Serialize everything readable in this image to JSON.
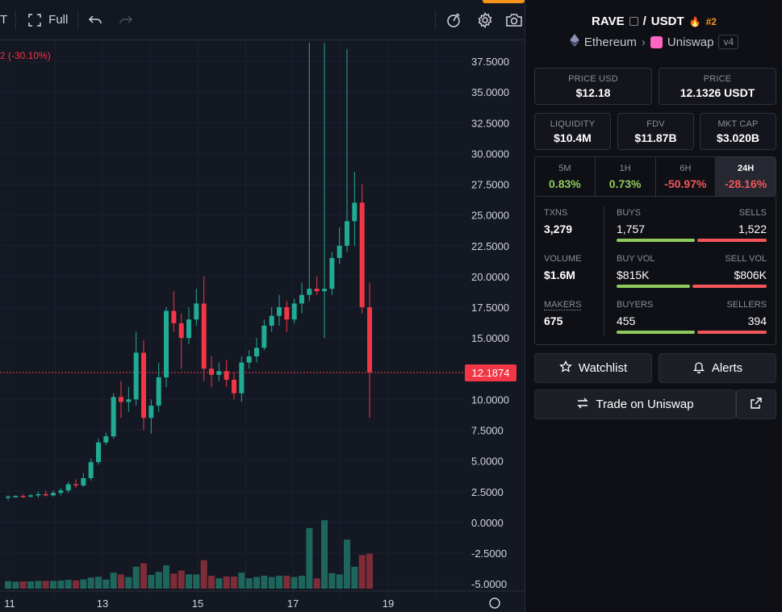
{
  "toolbar": {
    "left_fragment": "T",
    "full_label": "Full"
  },
  "chart": {
    "change_label": "2 (-30.10%)",
    "current_price_label": "12.1874",
    "y_ticks": [
      "37.5000",
      "35.0000",
      "32.5000",
      "30.0000",
      "27.5000",
      "25.0000",
      "22.5000",
      "20.0000",
      "17.5000",
      "15.0000",
      "12.1874",
      "10.0000",
      "7.5000",
      "5.0000",
      "2.5000",
      "0.0000",
      "-2.5000",
      "-5.0000"
    ],
    "x_ticks": [
      "11",
      "13",
      "15",
      "17",
      "19"
    ],
    "colors": {
      "up": "#22ab94",
      "down": "#f23645",
      "vol_up": "#1f6f62",
      "vol_down": "#8a2f3a"
    }
  },
  "chart_data": {
    "type": "candlestick",
    "x": [
      "11",
      "13",
      "15",
      "17",
      "19"
    ],
    "ylim": [
      -5,
      40
    ],
    "current_price": 12.1874,
    "candles": [
      [
        2.0,
        2.2,
        1.8,
        2.1
      ],
      [
        2.1,
        2.2,
        2.0,
        2.15
      ],
      [
        2.15,
        2.3,
        2.0,
        2.1
      ],
      [
        2.1,
        2.3,
        2.0,
        2.2
      ],
      [
        2.2,
        2.5,
        2.0,
        2.3
      ],
      [
        2.3,
        2.6,
        2.1,
        2.2
      ],
      [
        2.2,
        2.6,
        2.1,
        2.4
      ],
      [
        2.4,
        2.8,
        2.2,
        2.6
      ],
      [
        2.6,
        3.3,
        2.4,
        3.1
      ],
      [
        3.1,
        3.5,
        2.8,
        3.0
      ],
      [
        3.0,
        4.0,
        2.9,
        3.6
      ],
      [
        3.6,
        5.2,
        3.4,
        4.9
      ],
      [
        4.9,
        6.8,
        4.7,
        6.5
      ],
      [
        6.5,
        7.3,
        6.3,
        7.0
      ],
      [
        7.0,
        10.5,
        6.8,
        10.2
      ],
      [
        10.2,
        11.5,
        8.5,
        9.8
      ],
      [
        9.8,
        11.0,
        9.0,
        10.0
      ],
      [
        10.0,
        15.5,
        9.5,
        13.8
      ],
      [
        13.8,
        14.8,
        7.5,
        8.5
      ],
      [
        8.5,
        10.0,
        7.2,
        9.5
      ],
      [
        9.5,
        13.0,
        9.0,
        11.8
      ],
      [
        11.8,
        17.5,
        11.0,
        17.2
      ],
      [
        17.2,
        18.8,
        15.5,
        16.2
      ],
      [
        16.2,
        17.0,
        12.5,
        15.0
      ],
      [
        15.0,
        17.5,
        14.5,
        16.5
      ],
      [
        16.5,
        19.0,
        16.0,
        17.8
      ],
      [
        17.8,
        20.0,
        11.5,
        12.5
      ],
      [
        12.5,
        13.5,
        11.0,
        12.0
      ],
      [
        12.0,
        13.0,
        11.5,
        12.3
      ],
      [
        12.3,
        13.2,
        11.0,
        11.6
      ],
      [
        11.6,
        12.2,
        10.0,
        10.5
      ],
      [
        10.5,
        13.5,
        9.8,
        13.0
      ],
      [
        13.0,
        14.0,
        12.5,
        13.5
      ],
      [
        13.5,
        15.0,
        13.0,
        14.2
      ],
      [
        14.2,
        16.5,
        14.0,
        16.0
      ],
      [
        16.0,
        17.5,
        15.5,
        16.8
      ],
      [
        16.8,
        18.5,
        16.0,
        17.5
      ],
      [
        17.5,
        18.0,
        15.5,
        16.5
      ],
      [
        16.5,
        18.2,
        16.2,
        17.8
      ],
      [
        17.8,
        19.5,
        17.0,
        18.5
      ],
      [
        18.5,
        39.0,
        18.0,
        19.0
      ],
      [
        19.0,
        20.0,
        18.5,
        18.8
      ],
      [
        18.8,
        39.0,
        15.0,
        19.0
      ],
      [
        19.0,
        22.0,
        18.5,
        21.5
      ],
      [
        21.5,
        24.0,
        21.0,
        22.5
      ],
      [
        22.5,
        38.5,
        22.0,
        24.5
      ],
      [
        24.5,
        28.5,
        22.5,
        26.0
      ],
      [
        26.0,
        27.5,
        17.0,
        17.5
      ],
      [
        17.5,
        19.5,
        8.5,
        12.2
      ]
    ]
  },
  "pair": {
    "base": "RAVE",
    "quote": "USDT",
    "rank": "#2",
    "chain": "Ethereum",
    "dex": "Uniswap",
    "version": "v4"
  },
  "price_usd": {
    "label": "PRICE USD",
    "value": "$12.18"
  },
  "price_native": {
    "label": "PRICE",
    "value": "12.1326 USDT"
  },
  "liquidity": {
    "label": "LIQUIDITY",
    "value": "$10.4M"
  },
  "fdv": {
    "label": "FDV",
    "value": "$11.87B"
  },
  "mkt_cap": {
    "label": "MKT CAP",
    "value": "$3.020B"
  },
  "timeframes": [
    {
      "label": "5M",
      "value": "0.83%"
    },
    {
      "label": "1H",
      "value": "0.73%"
    },
    {
      "label": "6H",
      "value": "-50.97%"
    },
    {
      "label": "24H",
      "value": "-28.16%"
    }
  ],
  "stats": {
    "txns": {
      "label": "TXNS",
      "value": "3,279"
    },
    "buys": {
      "label": "BUYS",
      "value": "1,757",
      "ratio": 0.536
    },
    "sells": {
      "label": "SELLS",
      "value": "1,522"
    },
    "volume": {
      "label": "VOLUME",
      "value": "$1.6M"
    },
    "buy_vol": {
      "label": "BUY VOL",
      "value": "$815K",
      "ratio": 0.503
    },
    "sell_vol": {
      "label": "SELL VOL",
      "value": "$806K"
    },
    "makers": {
      "label": "MAKERS",
      "value": "675"
    },
    "buyers": {
      "label": "BUYERS",
      "value": "455",
      "ratio": 0.536
    },
    "sellers": {
      "label": "SELLERS",
      "value": "394"
    }
  },
  "actions": {
    "watchlist": "Watchlist",
    "alerts": "Alerts",
    "trade": "Trade on Uniswap"
  }
}
